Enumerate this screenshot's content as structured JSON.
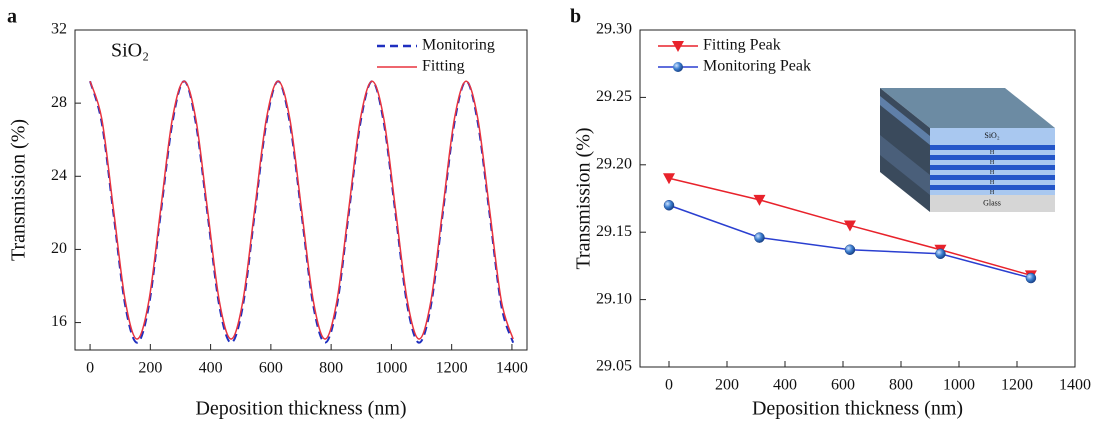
{
  "chart_data": [
    {
      "type": "line",
      "panel_label": "a",
      "annotation": "SiO₂",
      "smooth": true,
      "x_label": "Deposition thickness (nm)",
      "y_label": "Transmission (%)",
      "x": [
        0,
        39,
        78,
        117,
        156,
        195,
        234,
        273,
        312,
        351,
        390,
        429,
        468,
        507,
        546,
        585,
        624,
        663,
        702,
        741,
        780,
        819,
        858,
        897,
        936,
        975,
        1014,
        1053,
        1092,
        1131,
        1170,
        1209,
        1248,
        1287,
        1326,
        1365,
        1404
      ],
      "series": [
        {
          "name": "Monitoring",
          "color": "#1f2fbf",
          "dash": true,
          "values": [
            29.2,
            26.9,
            21.9,
            16.9,
            14.9,
            16.9,
            21.9,
            26.9,
            29.2,
            26.9,
            21.9,
            16.9,
            14.9,
            16.9,
            21.9,
            26.9,
            29.2,
            26.9,
            21.9,
            16.9,
            14.9,
            16.9,
            21.9,
            26.9,
            29.2,
            26.9,
            21.9,
            16.9,
            14.9,
            16.9,
            21.9,
            26.9,
            29.2,
            26.9,
            21.9,
            16.9,
            14.9
          ]
        },
        {
          "name": "Fitting",
          "color": "#e8333f",
          "dash": false,
          "values": [
            29.2,
            27.13,
            22.15,
            17.17,
            15.1,
            17.17,
            22.15,
            27.13,
            29.2,
            27.13,
            22.15,
            17.17,
            15.1,
            17.17,
            22.15,
            27.13,
            29.2,
            27.13,
            22.15,
            17.17,
            15.1,
            17.17,
            22.15,
            27.13,
            29.2,
            27.13,
            22.15,
            17.17,
            15.1,
            17.17,
            22.15,
            27.13,
            29.2,
            27.13,
            22.15,
            17.17,
            15.1
          ]
        }
      ],
      "xlim": [
        -50,
        1450
      ],
      "xticks": [
        0,
        200,
        400,
        600,
        800,
        1000,
        1200,
        1400
      ],
      "ylim": [
        14.5,
        32
      ],
      "yticks": [
        16,
        20,
        24,
        28,
        32
      ],
      "legend": "upper right"
    },
    {
      "type": "line",
      "panel_label": "b",
      "smooth": false,
      "x_label": "Deposition thickness (nm)",
      "y_label": "Transmission (%)",
      "x": [
        0,
        312,
        624,
        936,
        1248
      ],
      "series": [
        {
          "name": "Fitting Peak",
          "color": "#e8222b",
          "marker": "triangle-down",
          "values": [
            29.19,
            29.174,
            29.155,
            29.137,
            29.118
          ]
        },
        {
          "name": "Monitoring Peak",
          "color": "#2a3fd0",
          "marker": "circle",
          "values": [
            29.17,
            29.146,
            29.137,
            29.134,
            29.116
          ]
        }
      ],
      "xlim": [
        -100,
        1400
      ],
      "xticks": [
        0,
        200,
        400,
        600,
        800,
        1000,
        1200,
        1400
      ],
      "ylim": [
        29.05,
        29.3
      ],
      "yticks": [
        29.05,
        {
          "value": 29.1,
          "label": "29.10"
        },
        29.15,
        {
          "value": 29.2,
          "label": "29.20"
        },
        29.25,
        {
          "value": 29.3,
          "label": "29.30"
        }
      ],
      "legend": "upper left",
      "inset": {
        "layers": [
          "SiO₂",
          "H",
          "H",
          "H",
          "H",
          "H",
          "Glass"
        ]
      }
    }
  ]
}
